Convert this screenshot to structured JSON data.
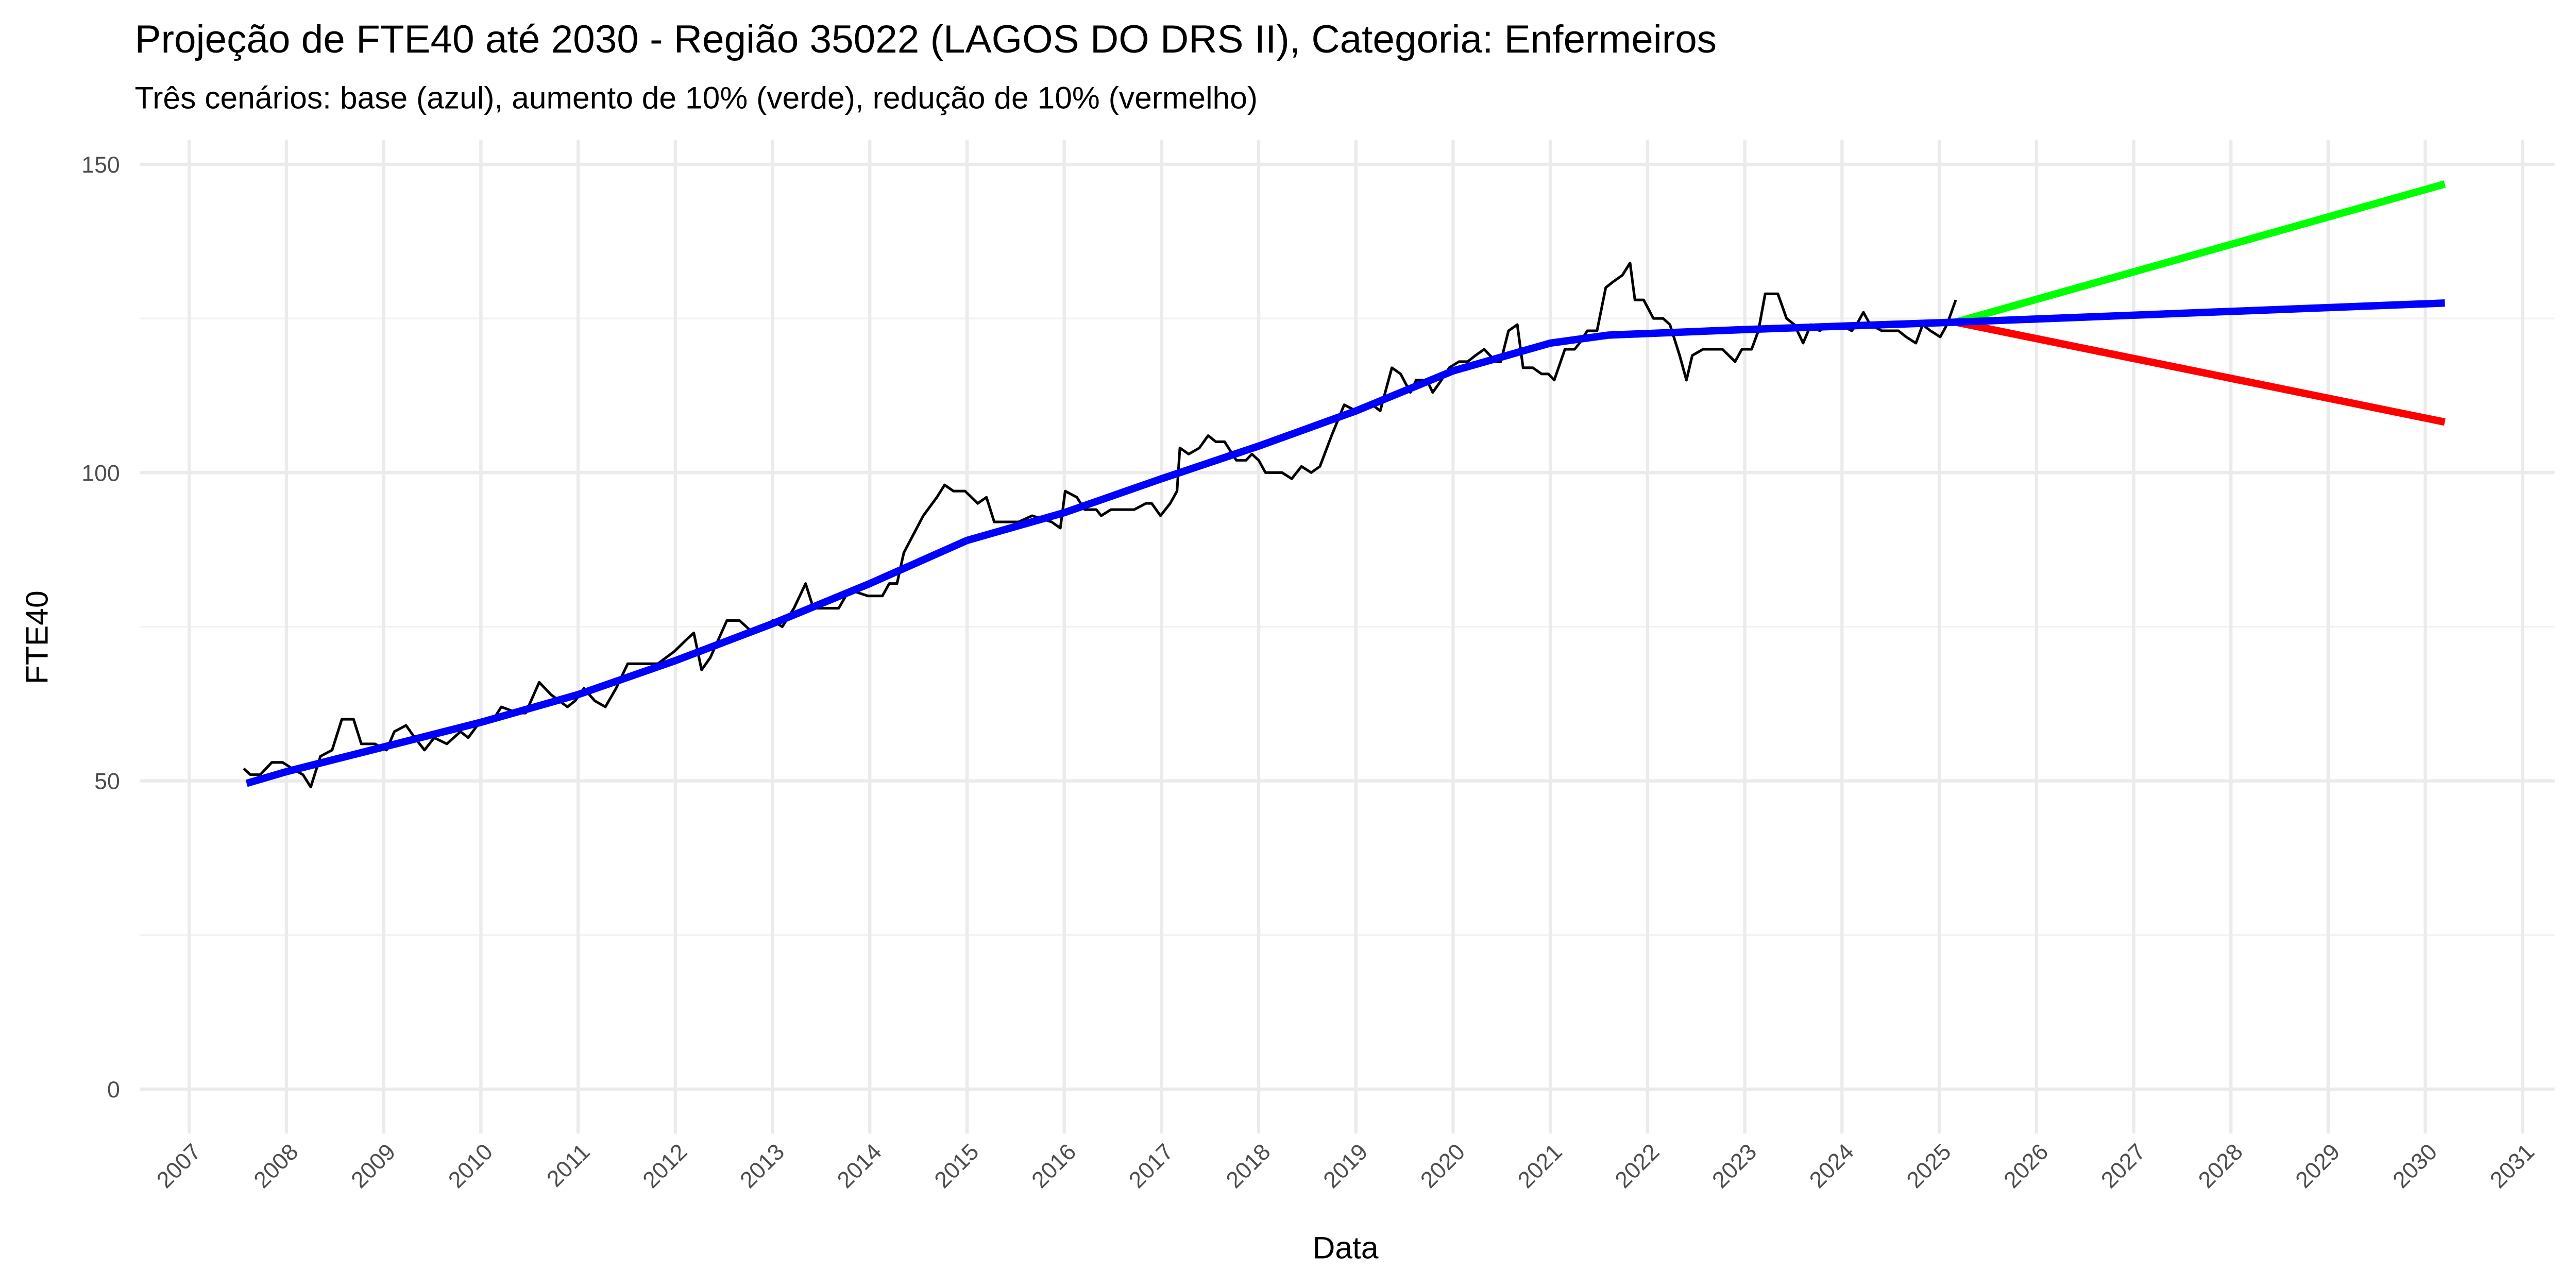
{
  "chart_data": {
    "type": "line",
    "title": "Projeção de FTE40 até 2030 - Região 35022 (LAGOS DO DRS II), Categoria: Enfermeiros",
    "subtitle": "Três cenários: base (azul), aumento de 10% (verde), redução de 10% (vermelho)",
    "x_label": "Data",
    "y_label": "FTE40",
    "xlim": [
      2006.49,
      2031.33
    ],
    "xticks": [
      2007,
      2008,
      2009,
      2010,
      2011,
      2012,
      2013,
      2014,
      2015,
      2016,
      2017,
      2018,
      2019,
      2020,
      2021,
      2022,
      2023,
      2024,
      2025,
      2026,
      2027,
      2028,
      2029,
      2030,
      2031
    ],
    "ylim": [
      -7.2,
      154
    ],
    "yticks": [
      0,
      50,
      100,
      150
    ],
    "yminor": [
      25,
      75,
      125
    ],
    "grid": true,
    "series": [
      {
        "color": "#000000",
        "width": 1.6,
        "x": [
          2007.56,
          2007.63,
          2007.73,
          2007.85,
          2007.96,
          2008.06,
          2008.17,
          2008.25,
          2008.35,
          2008.47,
          2008.57,
          2008.69,
          2008.77,
          2008.91,
          2009.03,
          2009.11,
          2009.23,
          2009.32,
          2009.42,
          2009.52,
          2009.65,
          2009.79,
          2009.87,
          2010.01,
          2010.13,
          2010.21,
          2010.38,
          2010.46,
          2010.6,
          2010.72,
          2010.89,
          2010.97,
          2011.06,
          2011.17,
          2011.28,
          2011.39,
          2011.51,
          2011.65,
          2011.82,
          2011.99,
          2012.12,
          2012.19,
          2012.27,
          2012.36,
          2012.53,
          2012.66,
          2012.8,
          2012.92,
          2013.0,
          2013.1,
          2013.22,
          2013.34,
          2013.42,
          2013.68,
          2013.79,
          2013.98,
          2014.13,
          2014.2,
          2014.28,
          2014.35,
          2014.45,
          2014.55,
          2014.69,
          2014.77,
          2014.86,
          2014.98,
          2015.11,
          2015.2,
          2015.28,
          2015.53,
          2015.67,
          2015.87,
          2015.96,
          2016.01,
          2016.13,
          2016.21,
          2016.33,
          2016.38,
          2016.48,
          2016.72,
          2016.84,
          2016.9,
          2016.99,
          2017.09,
          2017.16,
          2017.19,
          2017.28,
          2017.39,
          2017.48,
          2017.56,
          2017.65,
          2017.77,
          2017.87,
          2017.93,
          2018.0,
          2018.07,
          2018.24,
          2018.34,
          2018.44,
          2018.54,
          2018.63,
          2018.75,
          2018.88,
          2019.0,
          2019.17,
          2019.25,
          2019.37,
          2019.46,
          2019.56,
          2019.62,
          2019.73,
          2019.79,
          2019.88,
          2019.96,
          2020.06,
          2020.15,
          2020.23,
          2020.32,
          2020.44,
          2020.49,
          2020.57,
          2020.66,
          2020.72,
          2020.82,
          2020.91,
          2020.98,
          2021.04,
          2021.15,
          2021.25,
          2021.3,
          2021.38,
          2021.48,
          2021.57,
          2021.65,
          2021.74,
          2021.82,
          2021.87,
          2021.96,
          2022.06,
          2022.16,
          2022.23,
          2022.33,
          2022.4,
          2022.46,
          2022.57,
          2022.77,
          2022.9,
          2022.97,
          2023.07,
          2023.14,
          2023.21,
          2023.34,
          2023.43,
          2023.51,
          2023.6,
          2023.68,
          2023.77,
          2023.85,
          2023.98,
          2024.1,
          2024.15,
          2024.22,
          2024.29,
          2024.41,
          2024.58,
          2024.66,
          2024.76,
          2024.83,
          2024.91,
          2025.01,
          2025.08,
          2025.17
        ],
        "values": [
          52,
          51,
          51,
          53,
          53,
          52,
          51,
          49,
          54,
          55,
          60,
          60,
          56,
          56,
          55,
          58,
          59,
          57,
          55,
          57,
          56,
          58,
          57,
          60,
          60,
          62,
          61,
          61,
          66,
          64,
          62,
          63,
          65,
          63,
          62,
          65,
          69,
          69,
          69,
          71,
          73,
          74,
          68,
          70,
          76,
          76,
          74,
          75,
          76,
          75,
          78,
          82,
          78,
          78,
          81,
          80,
          80,
          82,
          82,
          87,
          90,
          93,
          96,
          98,
          97,
          97,
          95,
          96,
          92,
          92,
          93,
          92,
          91,
          97,
          96,
          94,
          94,
          93,
          94,
          94,
          95,
          95,
          93,
          95,
          97,
          104,
          103,
          104,
          106,
          105,
          105,
          102,
          102,
          103,
          102,
          100,
          100,
          99,
          101,
          100,
          101,
          106,
          111,
          110,
          111,
          110,
          117,
          116,
          113,
          115,
          115,
          113,
          115,
          117,
          118,
          118,
          119,
          120,
          118,
          118,
          123,
          124,
          117,
          117,
          116,
          116,
          115,
          120,
          120,
          121,
          123,
          123,
          130,
          131,
          132,
          134,
          128,
          128,
          125,
          125,
          124,
          119,
          115,
          119,
          120,
          120,
          118,
          120,
          120,
          123,
          129,
          129,
          125,
          124,
          121,
          124,
          123,
          124,
          124,
          123,
          124,
          126,
          124,
          123,
          123,
          122,
          121,
          124,
          123,
          122,
          124,
          128
        ]
      },
      {
        "color": "#00ff00",
        "width": 4.5,
        "x": [
          2025.17,
          2030.2
        ],
        "values": [
          124.4,
          146.8
        ]
      },
      {
        "color": "#ff0000",
        "width": 4.5,
        "x": [
          2025.17,
          2030.2
        ],
        "values": [
          124.4,
          108.2
        ]
      },
      {
        "color": "#0000ff",
        "width": 4.5,
        "x": [
          2007.59,
          2008,
          2009,
          2010,
          2011,
          2012,
          2013,
          2014,
          2015,
          2016,
          2017,
          2018,
          2019,
          2020,
          2021,
          2021.6,
          2023,
          2025.17,
          2030.2
        ],
        "values": [
          49.6,
          51.5,
          55.5,
          59.5,
          64,
          69.5,
          75.5,
          82,
          89,
          93.5,
          99,
          104.3,
          110,
          116.5,
          121,
          122.3,
          123.2,
          124.4,
          127.5
        ]
      }
    ]
  }
}
